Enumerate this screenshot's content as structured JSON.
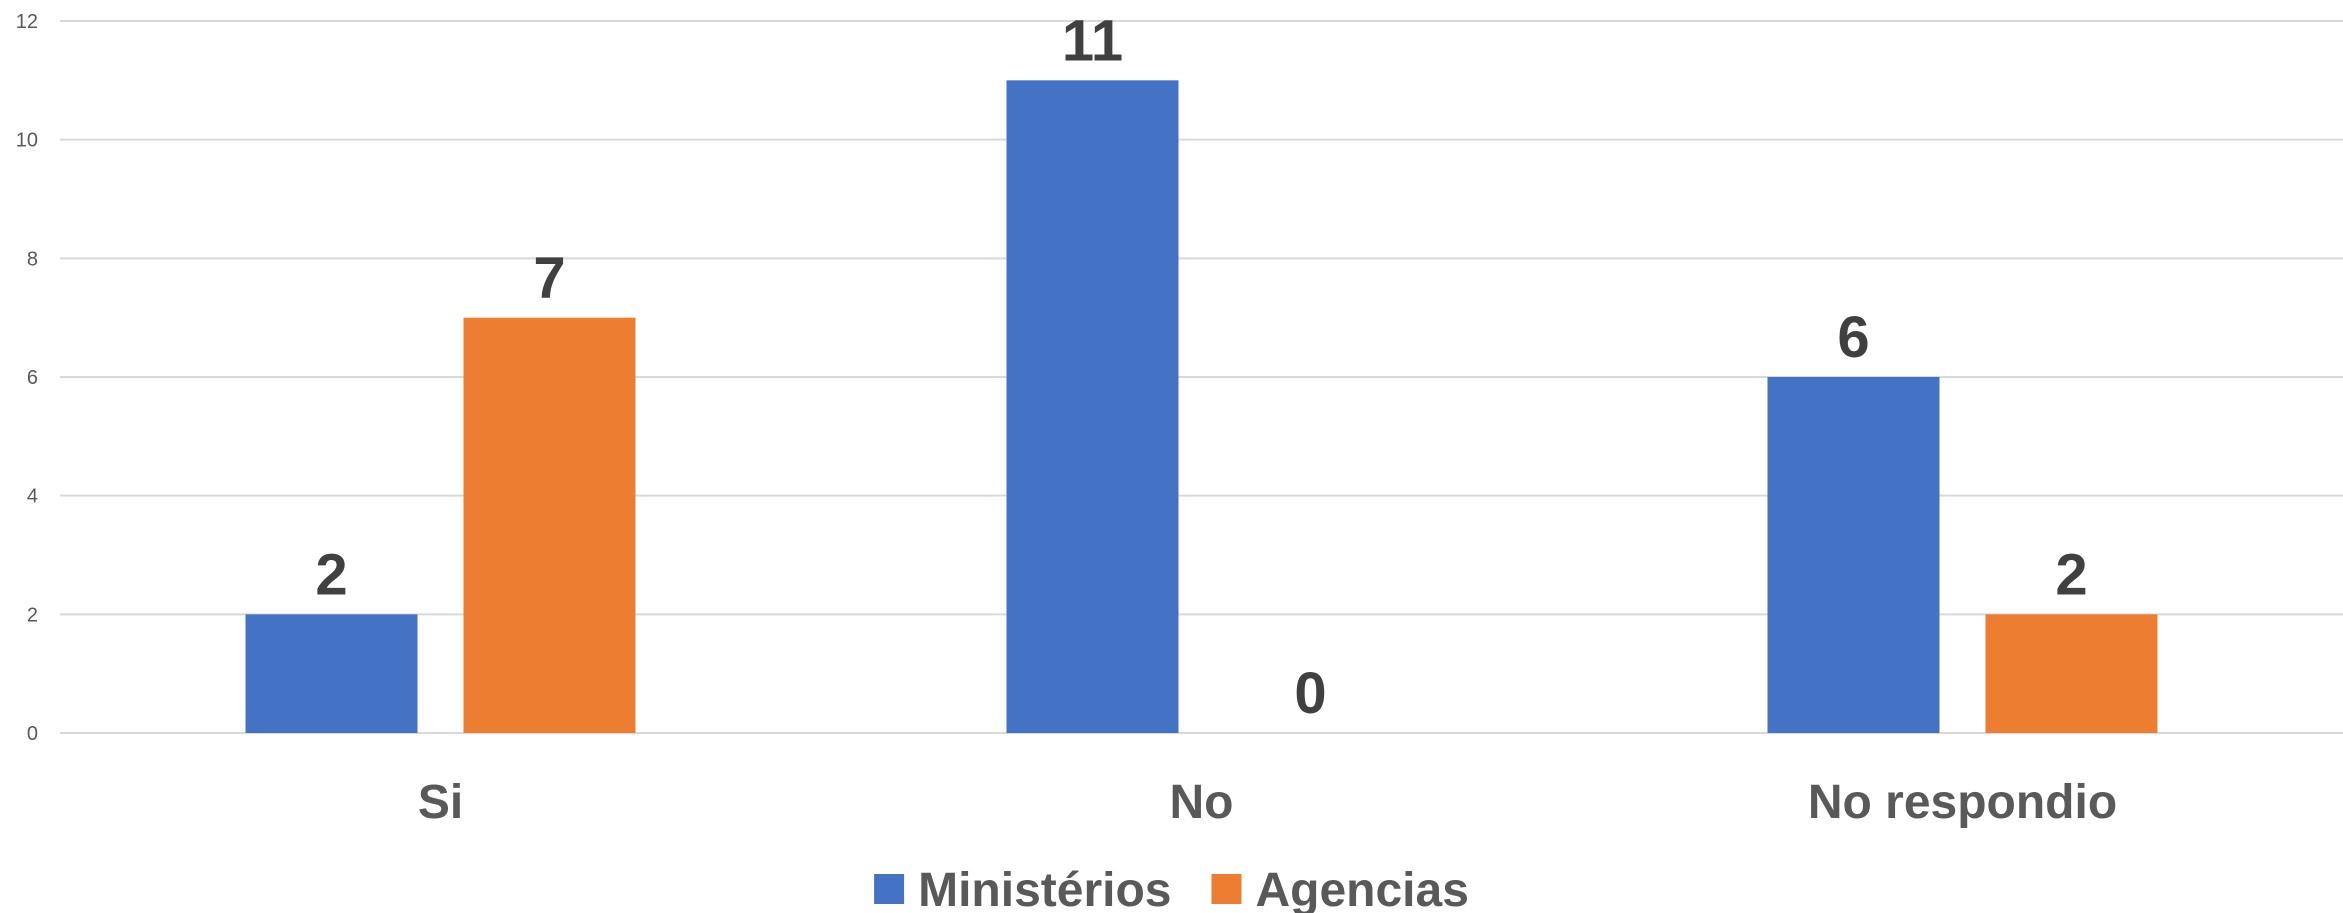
{
  "chart_data": {
    "type": "bar",
    "title": "",
    "xlabel": "",
    "ylabel": "",
    "categories": [
      "Si",
      "No",
      "No respondio"
    ],
    "series": [
      {
        "name": "Ministérios",
        "color": "#4472C4",
        "values": [
          2,
          11,
          6
        ]
      },
      {
        "name": "Agencias",
        "color": "#ED7D31",
        "values": [
          7,
          0,
          2
        ]
      }
    ],
    "ylim": [
      0,
      12
    ],
    "yticks": [
      0,
      2,
      4,
      6,
      8,
      10,
      12
    ],
    "grid": true,
    "legend": "bottom-center",
    "data_labels": true
  }
}
